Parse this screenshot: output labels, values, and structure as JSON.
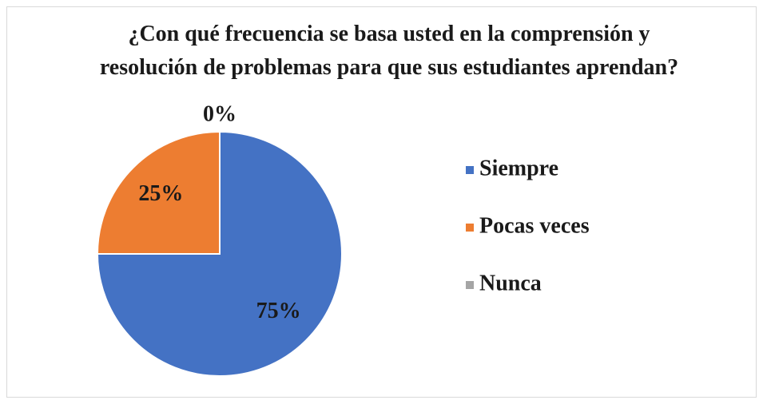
{
  "chart_data": {
    "type": "pie",
    "title": "¿Con qué frecuencia se basa usted en la comprensión y resolución de problemas para que sus estudiantes aprendan?",
    "categories": [
      "Siempre",
      "Pocas veces",
      "Nunca"
    ],
    "values": [
      75,
      25,
      0
    ],
    "value_labels": [
      "75%",
      "25%",
      "0%"
    ],
    "colors": [
      "#4472c4",
      "#ed7d31",
      "#a5a5a5"
    ],
    "legend": "right"
  }
}
